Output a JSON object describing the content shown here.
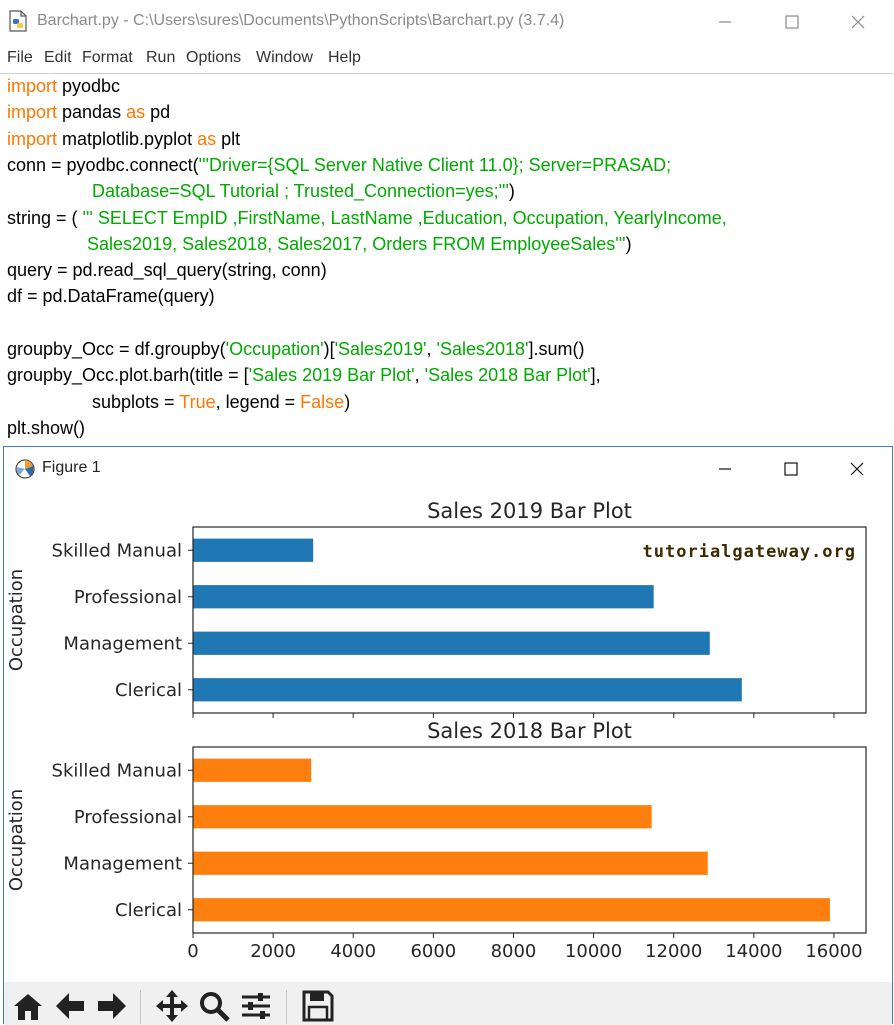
{
  "idle": {
    "title": "Barchart.py - C:\\Users\\sures\\Documents\\PythonScripts\\Barchart.py (3.7.4)",
    "menu": [
      "File",
      "Edit",
      "Format",
      "Run",
      "Options",
      "Window",
      "Help"
    ],
    "code_lines": [
      [
        {
          "t": "import",
          "c": "kw"
        },
        {
          "t": " pyodbc",
          "c": ""
        }
      ],
      [
        {
          "t": "import",
          "c": "kw"
        },
        {
          "t": " pandas ",
          "c": ""
        },
        {
          "t": "as",
          "c": "kw"
        },
        {
          "t": " pd",
          "c": ""
        }
      ],
      [
        {
          "t": "import",
          "c": "kw"
        },
        {
          "t": " matplotlib.pyplot ",
          "c": ""
        },
        {
          "t": "as",
          "c": "kw"
        },
        {
          "t": " plt",
          "c": ""
        }
      ],
      [
        {
          "t": "conn = pyodbc.connect(",
          "c": ""
        },
        {
          "t": "'''Driver={SQL Server Native Client 11.0}; Server=PRASAD;",
          "c": "str"
        }
      ],
      [
        {
          "t": "                 ",
          "c": ""
        },
        {
          "t": "Database=SQL Tutorial ; Trusted_Connection=yes;'''",
          "c": "str"
        },
        {
          "t": ")",
          "c": ""
        }
      ],
      [
        {
          "t": "string = ( ",
          "c": ""
        },
        {
          "t": "''' SELECT EmpID ,FirstName, LastName ,Education, Occupation, YearlyIncome,",
          "c": "str"
        }
      ],
      [
        {
          "t": "                ",
          "c": ""
        },
        {
          "t": "Sales2019, Sales2018, Sales2017, Orders FROM EmployeeSales'''",
          "c": "str"
        },
        {
          "t": ")",
          "c": ""
        }
      ],
      [
        {
          "t": "query = pd.read_sql_query(string, conn)",
          "c": ""
        }
      ],
      [
        {
          "t": "df = pd.DataFrame(query)",
          "c": ""
        }
      ],
      [
        {
          "t": "",
          "c": ""
        }
      ],
      [
        {
          "t": "groupby_Occ = df.groupby(",
          "c": ""
        },
        {
          "t": "'Occupation'",
          "c": "str"
        },
        {
          "t": ")[",
          "c": ""
        },
        {
          "t": "'Sales2019'",
          "c": "str"
        },
        {
          "t": ", ",
          "c": ""
        },
        {
          "t": "'Sales2018'",
          "c": "str"
        },
        {
          "t": "].sum()",
          "c": ""
        }
      ],
      [
        {
          "t": "groupby_Occ.plot.barh(title = [",
          "c": ""
        },
        {
          "t": "'Sales 2019 Bar Plot'",
          "c": "str"
        },
        {
          "t": ", ",
          "c": ""
        },
        {
          "t": "'Sales 2018 Bar Plot'",
          "c": "str"
        },
        {
          "t": "],",
          "c": ""
        }
      ],
      [
        {
          "t": "                 subplots = ",
          "c": ""
        },
        {
          "t": "True",
          "c": "kw"
        },
        {
          "t": ", legend = ",
          "c": ""
        },
        {
          "t": "False",
          "c": "kw"
        },
        {
          "t": ")",
          "c": ""
        }
      ],
      [
        {
          "t": "plt.show()",
          "c": ""
        }
      ]
    ]
  },
  "figure": {
    "window_title": "Figure 1",
    "watermark": "tutorialgateway.org",
    "toolbar": [
      "home-icon",
      "back-arrow-icon",
      "forward-arrow-icon",
      "pan-icon",
      "zoom-icon",
      "subplots-config-icon",
      "save-icon"
    ]
  },
  "chart_data": [
    {
      "type": "bar",
      "orientation": "horizontal",
      "title": "Sales 2019 Bar Plot",
      "ylabel": "Occupation",
      "categories": [
        "Clerical",
        "Management",
        "Professional",
        "Skilled Manual"
      ],
      "values": [
        13700,
        12900,
        11500,
        3000
      ],
      "color": "#1f77b4",
      "xlim": [
        0,
        16800
      ],
      "show_x_ticklabels": false
    },
    {
      "type": "bar",
      "orientation": "horizontal",
      "title": "Sales 2018 Bar Plot",
      "ylabel": "Occupation",
      "categories": [
        "Clerical",
        "Management",
        "Professional",
        "Skilled Manual"
      ],
      "values": [
        15900,
        12850,
        11450,
        2950
      ],
      "color": "#ff7f0e",
      "xlim": [
        0,
        16800
      ],
      "xticks": [
        0,
        2000,
        4000,
        6000,
        8000,
        10000,
        12000,
        14000,
        16000
      ],
      "show_x_ticklabels": true
    }
  ]
}
